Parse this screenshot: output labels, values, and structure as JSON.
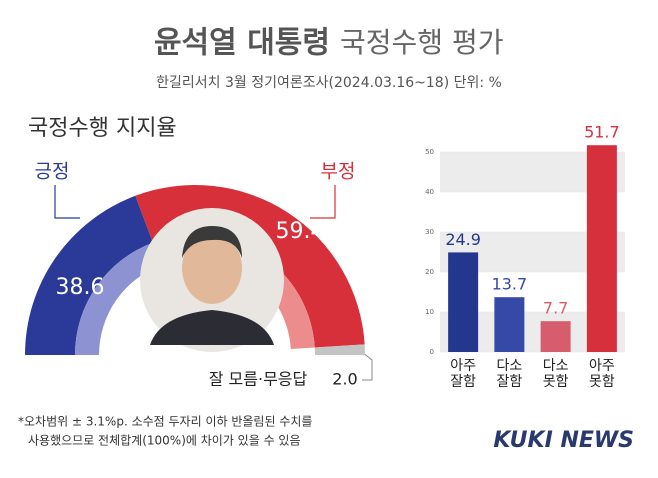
{
  "header": {
    "title_main": "윤석열 대통령",
    "title_rest": "국정수행 평가",
    "subtitle": "한길리서치 3월 정기여론조사(2024.03.16~18) 단위: %"
  },
  "chart_data": [
    {
      "type": "pie",
      "title": "국정수행 지지율",
      "categories": [
        "긍정",
        "부정",
        "잘 모름·무응답"
      ],
      "values": [
        38.6,
        59.4,
        2.0
      ],
      "value_labels": [
        "38.6",
        "59.4",
        "2.0"
      ],
      "colors": [
        "#2b3a98",
        "#d8303a",
        "#c4c4c4"
      ]
    },
    {
      "type": "bar",
      "categories": [
        "아주\n잘함",
        "다소\n잘함",
        "다소\n못함",
        "아주\n못함"
      ],
      "values": [
        24.9,
        13.7,
        7.7,
        51.7
      ],
      "colors": [
        "#24378f",
        "#3549a6",
        "#d75c6d",
        "#d6303c"
      ],
      "ylim": [
        0,
        52
      ],
      "yticks": [
        0,
        10,
        20,
        30,
        40,
        50
      ]
    }
  ],
  "footnote": [
    "*오차범위 ± 3.1%p. 소수점 두자리 이하 반올림된 수치를",
    "사용했으므로 전체합계(100%)에 차이가 있을 수 있음"
  ],
  "logo": "KUKI NEWS"
}
